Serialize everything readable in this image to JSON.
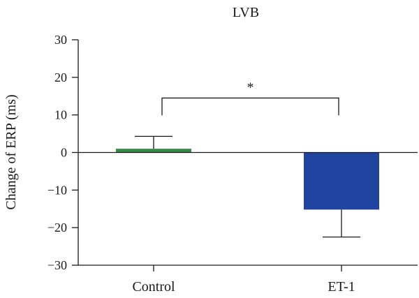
{
  "chart_data": {
    "type": "bar",
    "title": "LVB",
    "ylabel": "Change of ERP (ms)",
    "xlabel": "",
    "ylim": [
      -30,
      30
    ],
    "yticks": [
      30,
      20,
      10,
      0,
      -10,
      -20,
      -30
    ],
    "ytick_labels": [
      "30",
      "20",
      "10",
      "0",
      "−10",
      "−20",
      "−30"
    ],
    "categories": [
      "Control",
      "ET-1"
    ],
    "values": [
      1,
      -15.2
    ],
    "errors": [
      3.3,
      7.3
    ],
    "colors": [
      "#3a8a4a",
      "#1f45a0"
    ],
    "grid": false,
    "significance": {
      "between": [
        0,
        1
      ],
      "y": 14.5,
      "label": "*"
    }
  }
}
